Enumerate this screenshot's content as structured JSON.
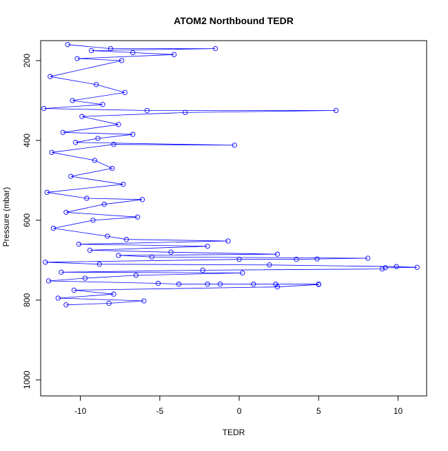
{
  "chart_data": {
    "type": "scatter",
    "title": "ATOM2 Northbound TEDR",
    "xlabel": "TEDR",
    "ylabel": "Pressure (mbar)",
    "xlim": [
      -12.5,
      11.8
    ],
    "ylim": [
      1040,
      150
    ],
    "y_reversed": true,
    "xticks": [
      -10,
      -5,
      0,
      5,
      10
    ],
    "yticks": [
      200,
      400,
      600,
      800,
      1000
    ],
    "grid": false,
    "marker": "open-circle",
    "connected": true,
    "series": [
      {
        "color": "#0000ff",
        "points": [
          [
            -10.8,
            160
          ],
          [
            -8.1,
            170
          ],
          [
            -1.5,
            170
          ],
          [
            -9.3,
            175
          ],
          [
            -6.7,
            180
          ],
          [
            -4.1,
            185
          ],
          [
            -10.2,
            195
          ],
          [
            -7.4,
            200
          ],
          [
            -11.9,
            240
          ],
          [
            -9.0,
            260
          ],
          [
            -7.2,
            280
          ],
          [
            -10.5,
            300
          ],
          [
            -8.6,
            310
          ],
          [
            -12.3,
            320
          ],
          [
            -5.8,
            325
          ],
          [
            6.1,
            325
          ],
          [
            -3.4,
            330
          ],
          [
            -9.9,
            340
          ],
          [
            -7.6,
            360
          ],
          [
            -11.1,
            380
          ],
          [
            -6.7,
            385
          ],
          [
            -8.9,
            395
          ],
          [
            -10.3,
            405
          ],
          [
            -0.3,
            412
          ],
          [
            -7.9,
            410
          ],
          [
            -11.8,
            430
          ],
          [
            -9.1,
            450
          ],
          [
            -8.0,
            470
          ],
          [
            -10.6,
            490
          ],
          [
            -7.3,
            510
          ],
          [
            -12.1,
            530
          ],
          [
            -9.6,
            545
          ],
          [
            -6.1,
            548
          ],
          [
            -8.5,
            560
          ],
          [
            -10.9,
            580
          ],
          [
            -6.4,
            592
          ],
          [
            -9.2,
            600
          ],
          [
            -11.7,
            620
          ],
          [
            -8.3,
            640
          ],
          [
            -7.1,
            648
          ],
          [
            -0.7,
            652
          ],
          [
            -10.1,
            660
          ],
          [
            -2.0,
            665
          ],
          [
            -9.4,
            675
          ],
          [
            -4.3,
            680
          ],
          [
            2.4,
            685
          ],
          [
            -7.6,
            688
          ],
          [
            -5.5,
            692
          ],
          [
            8.1,
            695
          ],
          [
            4.9,
            697
          ],
          [
            3.6,
            698
          ],
          [
            0.0,
            698
          ],
          [
            -12.2,
            705
          ],
          [
            -8.8,
            710
          ],
          [
            1.9,
            712
          ],
          [
            9.9,
            716
          ],
          [
            11.2,
            718
          ],
          [
            9.2,
            719
          ],
          [
            9.0,
            722
          ],
          [
            -2.3,
            725
          ],
          [
            -11.2,
            730
          ],
          [
            0.2,
            732
          ],
          [
            -6.5,
            738
          ],
          [
            -9.7,
            745
          ],
          [
            -12.0,
            752
          ],
          [
            -5.1,
            758
          ],
          [
            -3.8,
            760
          ],
          [
            -2.0,
            760
          ],
          [
            -1.2,
            760
          ],
          [
            0.9,
            760
          ],
          [
            2.3,
            760
          ],
          [
            5.0,
            760
          ],
          [
            5.0,
            761
          ],
          [
            2.4,
            767
          ],
          [
            -10.4,
            775
          ],
          [
            -7.9,
            785
          ],
          [
            -11.4,
            795
          ],
          [
            -6.0,
            802
          ],
          [
            -8.2,
            808
          ],
          [
            -10.9,
            812
          ]
        ]
      }
    ]
  }
}
